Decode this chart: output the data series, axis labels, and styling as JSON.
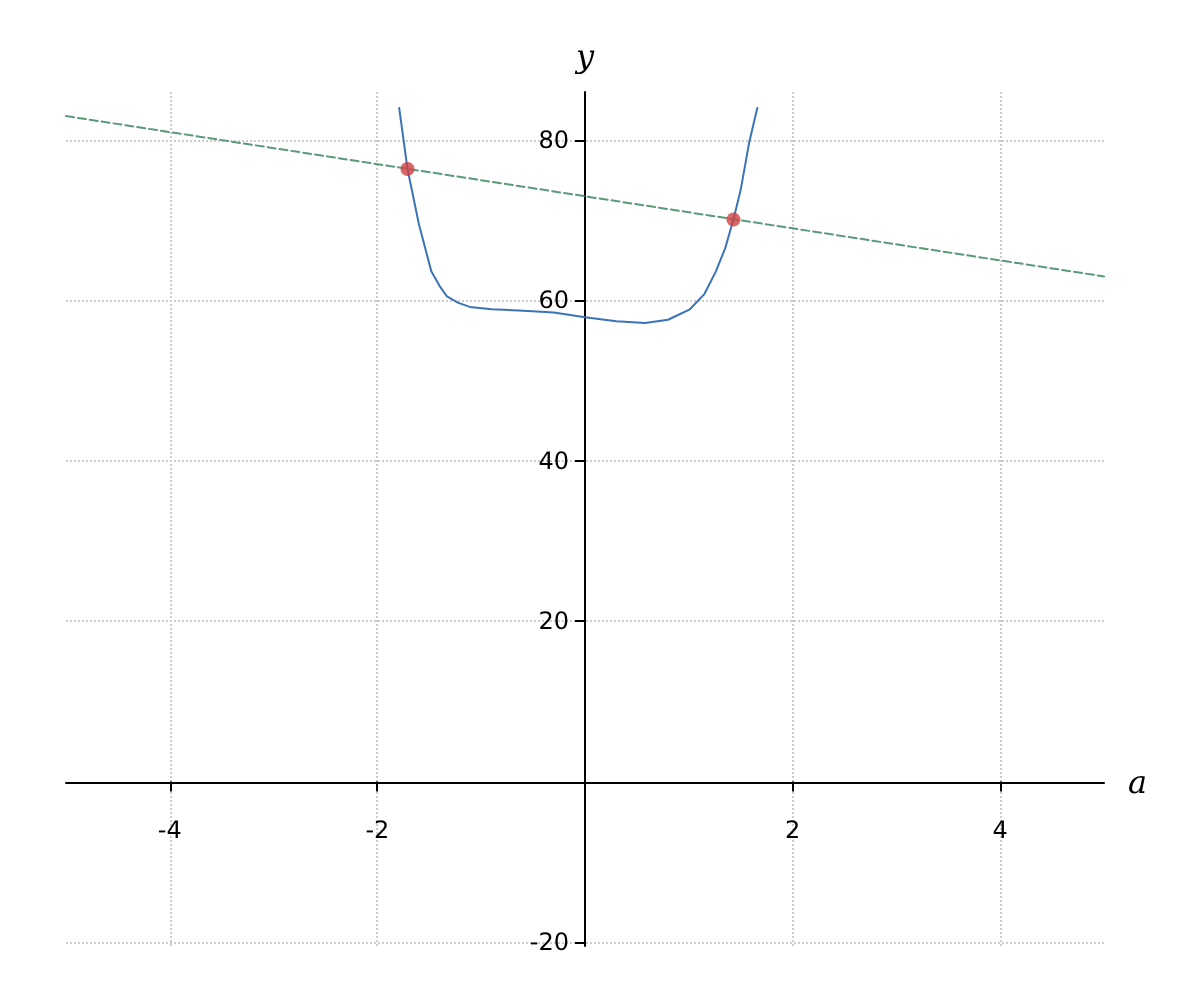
{
  "chart_data": {
    "type": "line",
    "xlabel": "a",
    "ylabel": "y",
    "xlim": [
      -5,
      5
    ],
    "ylim": [
      -20.5,
      86
    ],
    "xticks": [
      -4,
      -2,
      2,
      4
    ],
    "yticks": [
      -20,
      20,
      40,
      60,
      80
    ],
    "grid": true,
    "series": [
      {
        "color": "#3b73b9",
        "marker": "none",
        "line_style": "solid",
        "x": [
          -1.79,
          -1.71,
          -1.6,
          -1.48,
          -1.4,
          -1.33,
          -1.22,
          -1.11,
          -0.9,
          -0.55,
          -0.3,
          0,
          0.3,
          0.58,
          0.8,
          1.01,
          1.15,
          1.26,
          1.35,
          1.43,
          1.5,
          1.58,
          1.66
        ],
        "values": [
          84,
          76.4,
          69.5,
          63.6,
          61.8,
          60.5,
          59.7,
          59.2,
          58.9,
          58.7,
          58.5,
          57.9,
          57.4,
          57.2,
          57.6,
          58.9,
          60.8,
          63.6,
          66.5,
          70.1,
          73.8,
          79.6,
          84
        ]
      },
      {
        "color": "#5a9a78",
        "marker": "none",
        "line_style": "dashed",
        "x": [
          -5,
          5
        ],
        "values": [
          83,
          63
        ]
      },
      {
        "type": "scatter",
        "color": "#d04040",
        "marker": "circle",
        "x": [
          -1.71,
          1.43
        ],
        "values": [
          76.4,
          70.1
        ]
      }
    ]
  }
}
